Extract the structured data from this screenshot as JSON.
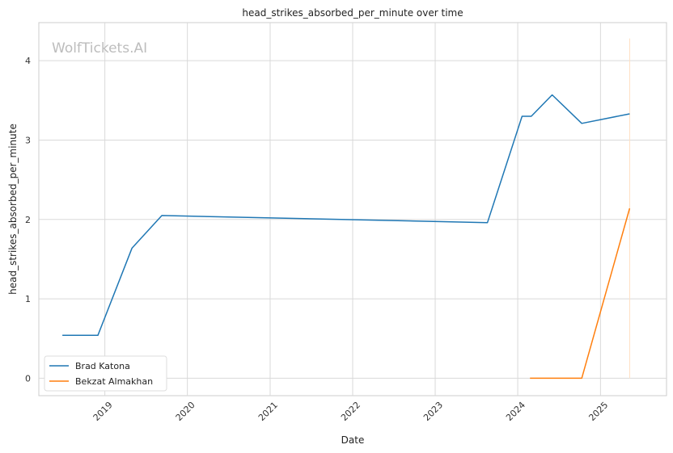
{
  "chart_data": {
    "type": "line",
    "title": "head_strikes_absorbed_per_minute over time",
    "xlabel": "Date",
    "ylabel": "head_strikes_absorbed_per_minute",
    "watermark": "WolfTickets.AI",
    "xlim": [
      "2018-03-15",
      "2025-10-20"
    ],
    "ylim": [
      -0.22,
      4.48
    ],
    "x_ticks": [
      "2019",
      "2020",
      "2021",
      "2022",
      "2023",
      "2024",
      "2025"
    ],
    "y_ticks": [
      0,
      1,
      2,
      3,
      4
    ],
    "grid": true,
    "legend_position": "lower-left",
    "series": [
      {
        "name": "Brad Katona",
        "color": "#1f77b4",
        "points": [
          {
            "x": "2018-06-27",
            "y": 0.54
          },
          {
            "x": "2018-12-01",
            "y": 0.54
          },
          {
            "x": "2019-05-01",
            "y": 1.64
          },
          {
            "x": "2019-09-10",
            "y": 2.05
          },
          {
            "x": "2023-08-20",
            "y": 1.96
          },
          {
            "x": "2024-01-20",
            "y": 3.3
          },
          {
            "x": "2024-03-01",
            "y": 3.3
          },
          {
            "x": "2024-06-01",
            "y": 3.57
          },
          {
            "x": "2024-10-10",
            "y": 3.21
          },
          {
            "x": "2025-05-10",
            "y": 3.33
          }
        ]
      },
      {
        "name": "Bekzat Almakhan",
        "color": "#ff7f0e",
        "points": [
          {
            "x": "2024-02-24",
            "y": 0.0
          },
          {
            "x": "2024-10-10",
            "y": 0.0
          },
          {
            "x": "2025-05-10",
            "y": 2.14
          }
        ]
      }
    ],
    "vertical_marker": {
      "x": "2025-05-10",
      "color": "#ffe0c2"
    }
  }
}
